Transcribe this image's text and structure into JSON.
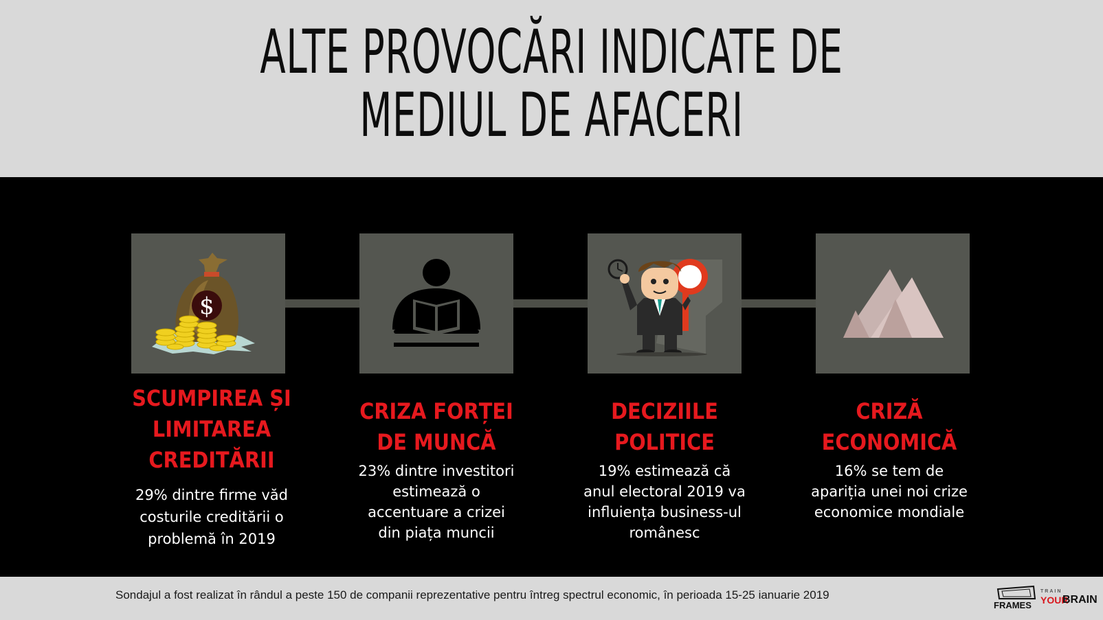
{
  "title": {
    "line1": "ALTE PROVOCĂRI INDICATE DE",
    "line2": "MEDIUL DE AFACERI"
  },
  "colors": {
    "header_bg": "#d9d9d9",
    "body_bg": "#000000",
    "tile_bg": "#545650",
    "accent_red": "#e6191e"
  },
  "items": [
    {
      "icon": "money-bag-icon",
      "heading": [
        "SCUMPIREA ȘI",
        "LIMITAREA",
        "CREDITĂRII"
      ],
      "description": [
        "29% dintre firme văd",
        "costurile creditării o",
        "problemă în 2019"
      ]
    },
    {
      "icon": "reading-person-icon",
      "heading": [
        "CRIZA FORȚEI",
        "DE MUNCĂ"
      ],
      "description": [
        "23% dintre investitori",
        "estimează o",
        "accentuare a crizei",
        "din piața muncii"
      ]
    },
    {
      "icon": "businessman-sign-icon",
      "heading": [
        "DECIZIILE",
        "POLITICE"
      ],
      "description": [
        "19% estimează că",
        "anul electoral 2019 va",
        "influiența business-ul",
        "românesc"
      ]
    },
    {
      "icon": "mountains-icon",
      "heading": [
        "CRIZĂ",
        "ECONOMICĂ"
      ],
      "description": [
        "16% se tem de",
        "apariția unei noi crize",
        "economice mondiale"
      ]
    }
  ],
  "footer": {
    "note": "Sondajul a fost realizat în rândul a peste 150 de companii reprezentative pentru întreg spectrul economic, în perioada 15-25 ianuarie 2019",
    "logo_frames": "FRAMES",
    "logo_train": "TRAIN",
    "logo_your": "YOUR",
    "logo_brain": "BRAIN"
  }
}
